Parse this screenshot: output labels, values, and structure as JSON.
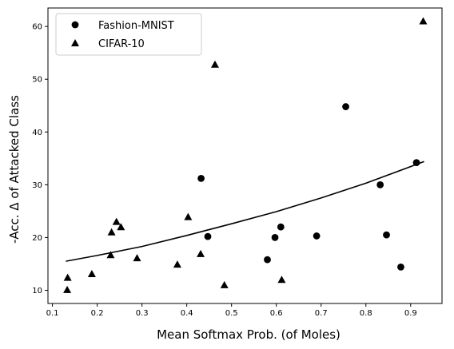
{
  "chart_data": {
    "type": "scatter",
    "xlabel": "Mean Softmax Prob. (of Moles)",
    "ylabel": "-Acc. Δ of Attacked Class",
    "xlim": [
      0.09,
      0.97
    ],
    "ylim": [
      7.5,
      63.5
    ],
    "xticks": [
      0.1,
      0.2,
      0.3,
      0.4,
      0.5,
      0.6,
      0.7,
      0.8,
      0.9
    ],
    "xtick_labels": [
      "0.1",
      "0.2",
      "0.3",
      "0.4",
      "0.5",
      "0.6",
      "0.7",
      "0.8",
      "0.9"
    ],
    "yticks": [
      10,
      20,
      30,
      40,
      50,
      60
    ],
    "ytick_labels": [
      "10",
      "20",
      "30",
      "40",
      "50",
      "60"
    ],
    "grid": false,
    "legend_position": "top-left",
    "series": [
      {
        "name": "Fashion-MNIST",
        "marker": "circle",
        "color": "#000000",
        "points": [
          {
            "x": 0.432,
            "y": 31.2
          },
          {
            "x": 0.447,
            "y": 20.2
          },
          {
            "x": 0.58,
            "y": 15.8
          },
          {
            "x": 0.597,
            "y": 20.0
          },
          {
            "x": 0.61,
            "y": 22.0
          },
          {
            "x": 0.69,
            "y": 20.3
          },
          {
            "x": 0.755,
            "y": 44.8
          },
          {
            "x": 0.832,
            "y": 30.0
          },
          {
            "x": 0.846,
            "y": 20.5
          },
          {
            "x": 0.878,
            "y": 14.4
          },
          {
            "x": 0.913,
            "y": 34.2
          }
        ]
      },
      {
        "name": "CIFAR-10",
        "marker": "triangle",
        "color": "#000000",
        "points": [
          {
            "x": 0.133,
            "y": 10.1
          },
          {
            "x": 0.134,
            "y": 12.4
          },
          {
            "x": 0.188,
            "y": 13.1
          },
          {
            "x": 0.23,
            "y": 16.7
          },
          {
            "x": 0.232,
            "y": 21.0
          },
          {
            "x": 0.243,
            "y": 23.0
          },
          {
            "x": 0.253,
            "y": 22.0
          },
          {
            "x": 0.289,
            "y": 16.1
          },
          {
            "x": 0.379,
            "y": 14.9
          },
          {
            "x": 0.403,
            "y": 23.9
          },
          {
            "x": 0.431,
            "y": 16.9
          },
          {
            "x": 0.463,
            "y": 52.8
          },
          {
            "x": 0.484,
            "y": 11.0
          },
          {
            "x": 0.612,
            "y": 12.0
          },
          {
            "x": 0.928,
            "y": 61.0
          }
        ]
      }
    ],
    "trend_line": {
      "color": "#000000",
      "x": [
        0.13,
        0.2,
        0.3,
        0.4,
        0.5,
        0.6,
        0.7,
        0.8,
        0.93
      ],
      "y": [
        15.5,
        16.6,
        18.3,
        20.4,
        22.6,
        24.9,
        27.5,
        30.3,
        34.4
      ]
    }
  }
}
